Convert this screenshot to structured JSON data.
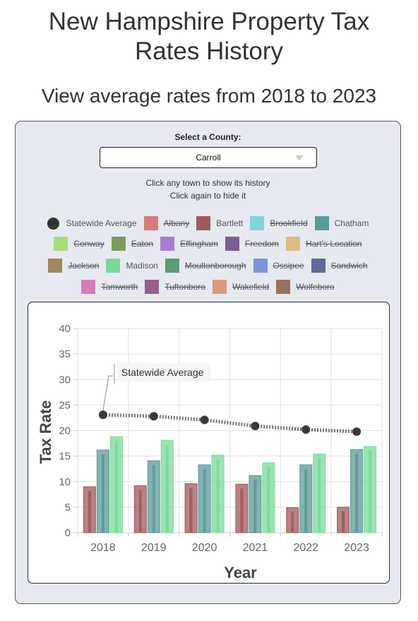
{
  "page": {
    "title": "New Hampshire Property Tax Rates History",
    "subtitle": "View average rates from 2018 to 2023"
  },
  "controls": {
    "select_label": "Select a County:",
    "selected_county": "Carroll",
    "hint_line1": "Click any town to show its history",
    "hint_line2": "Click again to hide it"
  },
  "legend": {
    "statewide_label": "Statewide Average",
    "rows": [
      [
        {
          "name": "Albany",
          "color": "#d97a78",
          "hidden": true
        },
        {
          "name": "Bartlett",
          "color": "#9e5a5c",
          "hidden": false
        },
        {
          "name": "Brookfield",
          "color": "#7fd6d4",
          "hidden": true
        },
        {
          "name": "Chatham",
          "color": "#5a9998",
          "hidden": false
        }
      ],
      [
        {
          "name": "Conway",
          "color": "#a8dc78",
          "hidden": true
        },
        {
          "name": "Eaton",
          "color": "#7a9a60",
          "hidden": true
        },
        {
          "name": "Effingham",
          "color": "#a87cd6",
          "hidden": true
        },
        {
          "name": "Freedom",
          "color": "#7a5e9a",
          "hidden": true
        },
        {
          "name": "Hart's Location",
          "color": "#d9bd80",
          "hidden": true
        }
      ],
      [
        {
          "name": "Jackson",
          "color": "#9a8a5e",
          "hidden": true
        },
        {
          "name": "Madison",
          "color": "#7ad99a",
          "hidden": false
        },
        {
          "name": "Moultonborough",
          "color": "#5e9a76",
          "hidden": true
        },
        {
          "name": "Ossipee",
          "color": "#7a96d6",
          "hidden": true
        },
        {
          "name": "Sandwich",
          "color": "#5e6a9a",
          "hidden": true
        }
      ],
      [
        {
          "name": "Tamworth",
          "color": "#d97abd",
          "hidden": true
        },
        {
          "name": "Tuftonboro",
          "color": "#9a5e8a",
          "hidden": true
        },
        {
          "name": "Wakefield",
          "color": "#d99a7a",
          "hidden": true
        },
        {
          "name": "Wolfeboro",
          "color": "#9a705e",
          "hidden": true
        }
      ]
    ]
  },
  "chart_data": {
    "type": "bar",
    "categories": [
      "2018",
      "2019",
      "2020",
      "2021",
      "2022",
      "2023"
    ],
    "series": [
      {
        "name": "Bartlett",
        "color": "#9e5a5c",
        "values": [
          9.0,
          9.2,
          9.6,
          9.5,
          4.9,
          5.0
        ]
      },
      {
        "name": "Chatham",
        "color": "#5a9998",
        "values": [
          16.2,
          14.1,
          13.3,
          11.2,
          13.3,
          16.3
        ]
      },
      {
        "name": "Madison",
        "color": "#7ad99a",
        "values": [
          18.8,
          18.1,
          15.2,
          13.7,
          15.4,
          16.9
        ]
      }
    ],
    "line_series": {
      "name": "Statewide Average",
      "color": "#333333",
      "values": [
        23.1,
        22.8,
        22.1,
        20.9,
        20.2,
        19.8
      ]
    },
    "annotation": "Statewide Average",
    "xlabel": "Year",
    "ylabel": "Tax Rate",
    "ylim": [
      0,
      40
    ],
    "yticks": [
      0,
      5,
      10,
      15,
      20,
      25,
      30,
      35,
      40
    ],
    "grid": true
  }
}
